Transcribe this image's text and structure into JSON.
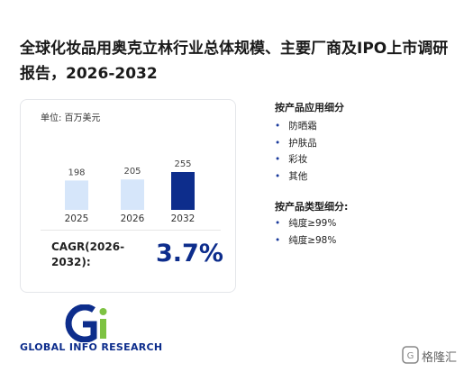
{
  "header": {
    "title": "全球化妆品用奥克立林行业总体规模、主要厂商及IPO上市调研报告，2026-2032"
  },
  "chart_data": {
    "type": "bar",
    "subtitle": "单位: 百万美元",
    "categories": [
      "2025",
      "2026",
      "2032"
    ],
    "values": [
      198,
      205,
      255
    ],
    "colors": [
      "#d6e6fa",
      "#d6e6fa",
      "#0d2d8c"
    ]
  },
  "cagr": {
    "label": "CAGR(2026-2032):",
    "value": "3.7%"
  },
  "application": {
    "heading": "按产品应用细分",
    "items": [
      "防晒霜",
      "护肤品",
      "彩妆",
      "其他"
    ]
  },
  "product_type": {
    "heading": "按产品类型细分:",
    "items": [
      "纯度≥99%",
      "纯度≥98%"
    ]
  },
  "footer": {
    "brand": "GLOBAL INFO RESEARCH",
    "source": "格隆汇"
  }
}
